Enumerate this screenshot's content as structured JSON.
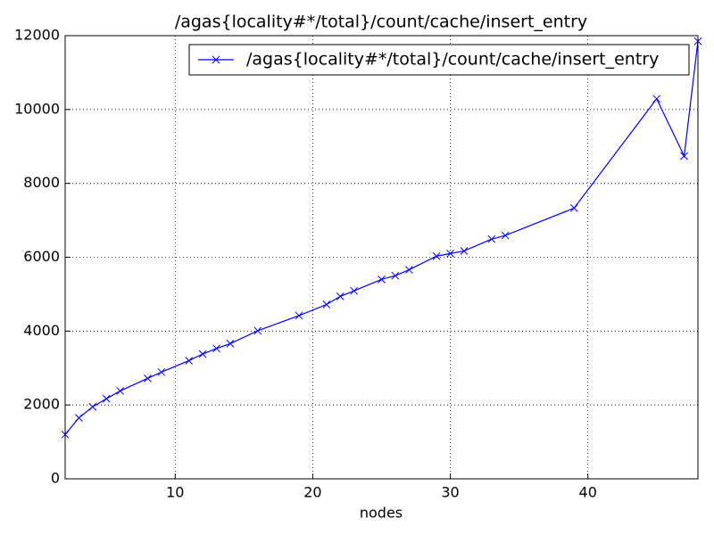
{
  "chart_data": {
    "type": "line",
    "title": "/agas{locality#*/total}/count/cache/insert_entry",
    "x_label": "nodes",
    "x": [
      2,
      3,
      4,
      5,
      6,
      8,
      9,
      11,
      12,
      13,
      14,
      16,
      19,
      21,
      22,
      23,
      25,
      26,
      27,
      29,
      30,
      31,
      33,
      34,
      39,
      45,
      47,
      48
    ],
    "series": [
      {
        "name": "/agas{locality#*/total}/count/cache/insert_entry",
        "color": "#0000ff",
        "values": [
          1200,
          1650,
          1950,
          2170,
          2380,
          2720,
          2890,
          3200,
          3380,
          3530,
          3660,
          4010,
          4420,
          4720,
          4940,
          5090,
          5400,
          5500,
          5660,
          6030,
          6100,
          6170,
          6490,
          6590,
          7330,
          10290,
          8740,
          11850
        ]
      }
    ],
    "xlim": [
      2,
      48
    ],
    "xticks": [
      10,
      20,
      30,
      40
    ],
    "ylim": [
      0,
      12000
    ],
    "yticks": [
      0,
      2000,
      4000,
      6000,
      8000,
      10000,
      12000
    ],
    "grid": true,
    "legend": "upper right"
  }
}
